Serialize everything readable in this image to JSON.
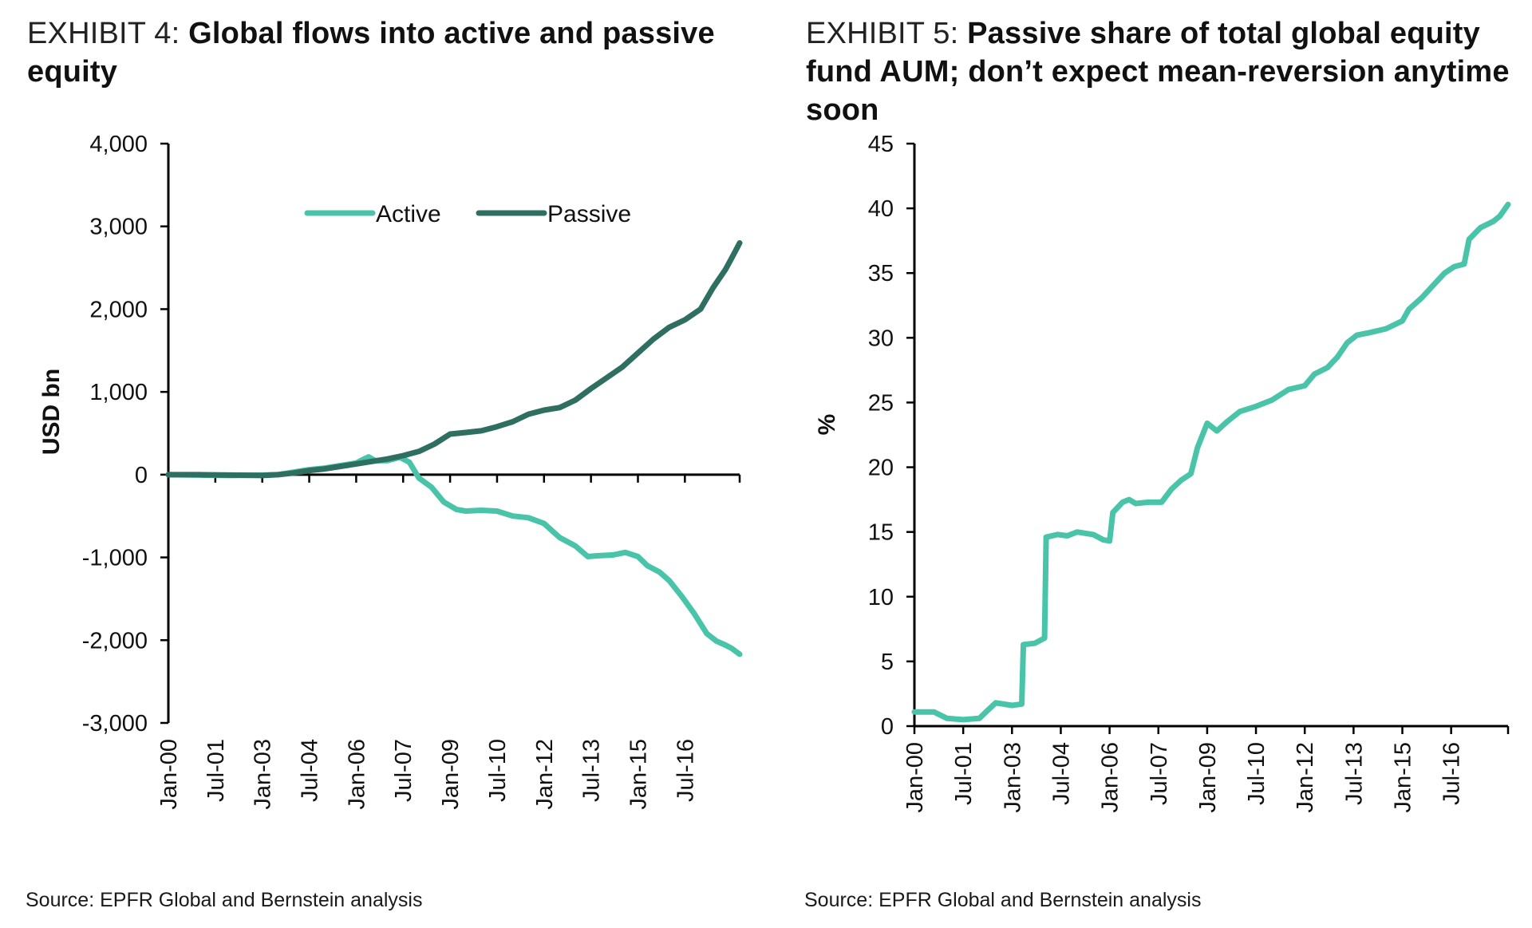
{
  "colors": {
    "active": "#49C4A9",
    "passive": "#2F6F62",
    "axis": "#000000"
  },
  "exhibit4": {
    "exhibit_label": "EXHIBIT 4:",
    "headline": "Global flows into active and passive equity",
    "source": "Source: EPFR Global and Bernstein analysis"
  },
  "exhibit5": {
    "exhibit_label": "EXHIBIT 5:",
    "headline": "Passive share of total global equity fund AUM; don’t expect mean-reversion anytime soon",
    "source": "Source: EPFR Global and Bernstein analysis"
  },
  "chart_data": [
    {
      "type": "line",
      "title": "Global flows into active and passive equity",
      "xlabel": "",
      "ylabel": "USD bn",
      "xlim": [
        2000.0,
        2018.25
      ],
      "ylim": [
        -3000,
        4000
      ],
      "yticks": [
        -3000,
        -2000,
        -1000,
        0,
        1000,
        2000,
        3000,
        4000
      ],
      "ytick_labels": [
        "-3,000",
        "-2,000",
        "-1,000",
        "0",
        "1,000",
        "2,000",
        "3,000",
        "4,000"
      ],
      "xticks": [
        2000.0,
        2001.5,
        2003.0,
        2004.5,
        2006.0,
        2007.5,
        2009.0,
        2010.5,
        2012.0,
        2013.5,
        2015.0,
        2016.5
      ],
      "xtick_labels": [
        "Jan-00",
        "Jul-01",
        "Jan-03",
        "Jul-04",
        "Jan-06",
        "Jul-07",
        "Jan-09",
        "Jul-10",
        "Jan-12",
        "Jul-13",
        "Jan-15",
        "Jul-16"
      ],
      "legend": {
        "position": "top-center",
        "entries": [
          "Active",
          "Passive"
        ]
      },
      "series": [
        {
          "name": "Active",
          "color": "#49C4A9",
          "points": [
            [
              2000.0,
              0
            ],
            [
              2001.0,
              -5
            ],
            [
              2002.0,
              -10
            ],
            [
              2003.0,
              -5
            ],
            [
              2003.5,
              0
            ],
            [
              2004.0,
              30
            ],
            [
              2004.5,
              60
            ],
            [
              2005.0,
              80
            ],
            [
              2005.5,
              110
            ],
            [
              2006.0,
              140
            ],
            [
              2006.2,
              180
            ],
            [
              2006.4,
              215
            ],
            [
              2006.6,
              170
            ],
            [
              2007.0,
              170
            ],
            [
              2007.4,
              210
            ],
            [
              2007.7,
              150
            ],
            [
              2008.0,
              -40
            ],
            [
              2008.4,
              -150
            ],
            [
              2008.8,
              -330
            ],
            [
              2009.2,
              -420
            ],
            [
              2009.5,
              -440
            ],
            [
              2010.0,
              -430
            ],
            [
              2010.5,
              -440
            ],
            [
              2011.0,
              -500
            ],
            [
              2011.5,
              -520
            ],
            [
              2012.0,
              -590
            ],
            [
              2012.5,
              -760
            ],
            [
              2013.0,
              -860
            ],
            [
              2013.4,
              -990
            ],
            [
              2013.7,
              -980
            ],
            [
              2014.2,
              -970
            ],
            [
              2014.6,
              -940
            ],
            [
              2015.0,
              -990
            ],
            [
              2015.3,
              -1100
            ],
            [
              2015.7,
              -1180
            ],
            [
              2016.0,
              -1280
            ],
            [
              2016.4,
              -1470
            ],
            [
              2016.8,
              -1680
            ],
            [
              2017.2,
              -1920
            ],
            [
              2017.5,
              -2010
            ],
            [
              2017.8,
              -2060
            ],
            [
              2018.0,
              -2100
            ],
            [
              2018.25,
              -2170
            ]
          ]
        },
        {
          "name": "Passive",
          "color": "#2F6F62",
          "points": [
            [
              2000.0,
              0
            ],
            [
              2001.0,
              0
            ],
            [
              2002.0,
              -5
            ],
            [
              2003.0,
              -10
            ],
            [
              2003.5,
              0
            ],
            [
              2004.0,
              20
            ],
            [
              2004.5,
              50
            ],
            [
              2005.0,
              70
            ],
            [
              2005.5,
              100
            ],
            [
              2006.0,
              130
            ],
            [
              2006.5,
              160
            ],
            [
              2007.0,
              190
            ],
            [
              2007.5,
              230
            ],
            [
              2008.0,
              280
            ],
            [
              2008.5,
              370
            ],
            [
              2009.0,
              490
            ],
            [
              2009.5,
              510
            ],
            [
              2010.0,
              530
            ],
            [
              2010.5,
              580
            ],
            [
              2011.0,
              640
            ],
            [
              2011.5,
              730
            ],
            [
              2012.0,
              780
            ],
            [
              2012.5,
              810
            ],
            [
              2013.0,
              900
            ],
            [
              2013.5,
              1040
            ],
            [
              2014.0,
              1170
            ],
            [
              2014.5,
              1300
            ],
            [
              2015.0,
              1470
            ],
            [
              2015.5,
              1640
            ],
            [
              2016.0,
              1780
            ],
            [
              2016.5,
              1870
            ],
            [
              2017.0,
              2000
            ],
            [
              2017.4,
              2260
            ],
            [
              2017.8,
              2480
            ],
            [
              2018.0,
              2620
            ],
            [
              2018.25,
              2800
            ]
          ]
        }
      ]
    },
    {
      "type": "line",
      "title": "Passive share of total global equity fund AUM; don’t expect mean-reversion anytime soon",
      "xlabel": "",
      "ylabel": "%",
      "xlim": [
        2000.0,
        2018.25
      ],
      "ylim": [
        0,
        45
      ],
      "yticks": [
        0,
        5,
        10,
        15,
        20,
        25,
        30,
        35,
        40,
        45
      ],
      "ytick_labels": [
        "0",
        "5",
        "10",
        "15",
        "20",
        "25",
        "30",
        "35",
        "40",
        "45"
      ],
      "xticks": [
        2000.0,
        2001.5,
        2003.0,
        2004.5,
        2006.0,
        2007.5,
        2009.0,
        2010.5,
        2012.0,
        2013.5,
        2015.0,
        2016.5
      ],
      "xtick_labels": [
        "Jan-00",
        "Jul-01",
        "Jan-03",
        "Jul-04",
        "Jan-06",
        "Jul-07",
        "Jan-09",
        "Jul-10",
        "Jan-12",
        "Jul-13",
        "Jan-15",
        "Jul-16"
      ],
      "series": [
        {
          "name": "Passive share",
          "color": "#49C4A9",
          "points": [
            [
              2000.0,
              1.1
            ],
            [
              2000.6,
              1.1
            ],
            [
              2001.0,
              0.6
            ],
            [
              2001.5,
              0.5
            ],
            [
              2002.0,
              0.6
            ],
            [
              2002.2,
              1.1
            ],
            [
              2002.5,
              1.8
            ],
            [
              2003.0,
              1.6
            ],
            [
              2003.3,
              1.7
            ],
            [
              2003.35,
              6.3
            ],
            [
              2003.7,
              6.4
            ],
            [
              2004.0,
              6.8
            ],
            [
              2004.05,
              14.6
            ],
            [
              2004.4,
              14.8
            ],
            [
              2004.7,
              14.7
            ],
            [
              2005.0,
              15.0
            ],
            [
              2005.5,
              14.8
            ],
            [
              2005.8,
              14.4
            ],
            [
              2006.0,
              14.3
            ],
            [
              2006.1,
              16.5
            ],
            [
              2006.4,
              17.3
            ],
            [
              2006.6,
              17.5
            ],
            [
              2006.8,
              17.2
            ],
            [
              2007.2,
              17.3
            ],
            [
              2007.6,
              17.3
            ],
            [
              2007.9,
              18.3
            ],
            [
              2008.2,
              19.0
            ],
            [
              2008.5,
              19.5
            ],
            [
              2008.7,
              21.5
            ],
            [
              2009.0,
              23.4
            ],
            [
              2009.3,
              22.8
            ],
            [
              2009.6,
              23.5
            ],
            [
              2010.0,
              24.3
            ],
            [
              2010.5,
              24.7
            ],
            [
              2011.0,
              25.2
            ],
            [
              2011.5,
              26.0
            ],
            [
              2012.0,
              26.3
            ],
            [
              2012.3,
              27.2
            ],
            [
              2012.7,
              27.7
            ],
            [
              2013.0,
              28.5
            ],
            [
              2013.3,
              29.6
            ],
            [
              2013.6,
              30.2
            ],
            [
              2014.0,
              30.4
            ],
            [
              2014.5,
              30.7
            ],
            [
              2015.0,
              31.3
            ],
            [
              2015.2,
              32.2
            ],
            [
              2015.6,
              33.1
            ],
            [
              2016.0,
              34.2
            ],
            [
              2016.3,
              35.0
            ],
            [
              2016.6,
              35.5
            ],
            [
              2016.9,
              35.7
            ],
            [
              2017.05,
              37.6
            ],
            [
              2017.4,
              38.5
            ],
            [
              2017.8,
              39.0
            ],
            [
              2018.0,
              39.4
            ],
            [
              2018.25,
              40.3
            ]
          ]
        }
      ]
    }
  ]
}
